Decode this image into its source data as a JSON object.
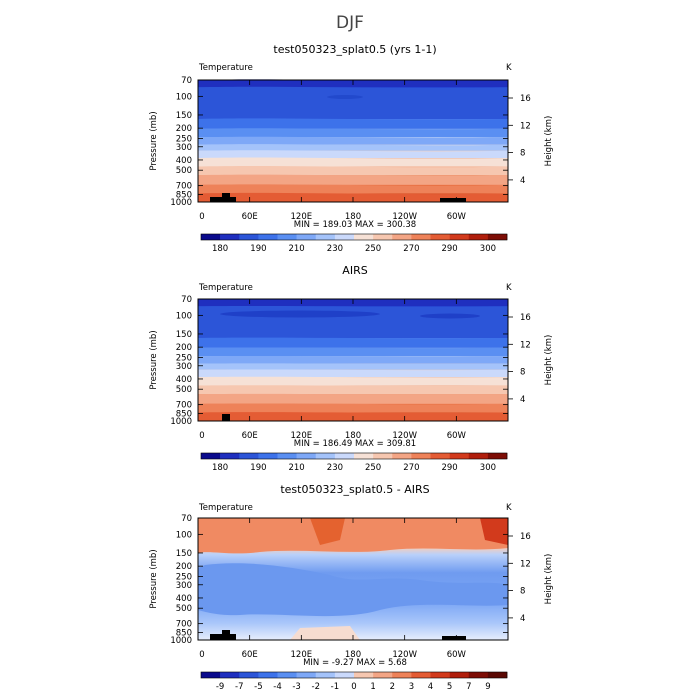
{
  "chart_data": {
    "type": "contour",
    "figure_title": "DJF",
    "panels": [
      {
        "title": "test050323_splat0.5 (yrs 1-1)",
        "left_label": "Temperature",
        "right_label": "K",
        "ylabel": "Pressure (mb)",
        "ylabel_right": "Height (km)",
        "pressure_ticks": [
          "70",
          "100",
          "150",
          "200",
          "250",
          "300",
          "400",
          "500",
          "700",
          "850",
          "1000"
        ],
        "height_ticks": [
          "16",
          "12",
          "8",
          "4"
        ],
        "x_ticks": [
          "0",
          "60E",
          "120E",
          "180",
          "120W",
          "60W"
        ],
        "stats": "MIN = 189.03   MAX = 300.38",
        "colorbar_labels": [
          "180",
          "190",
          "210",
          "230",
          "250",
          "270",
          "290",
          "300"
        ],
        "kind": "abs"
      },
      {
        "title": "AIRS",
        "left_label": "Temperature",
        "right_label": "K",
        "ylabel": "Pressure (mb)",
        "ylabel_right": "Height (km)",
        "pressure_ticks": [
          "70",
          "100",
          "150",
          "200",
          "250",
          "300",
          "400",
          "500",
          "700",
          "850",
          "1000"
        ],
        "height_ticks": [
          "16",
          "12",
          "8",
          "4"
        ],
        "x_ticks": [
          "0",
          "60E",
          "120E",
          "180",
          "120W",
          "60W"
        ],
        "stats": "MIN = 186.49   MAX = 309.81",
        "colorbar_labels": [
          "180",
          "190",
          "210",
          "230",
          "250",
          "270",
          "290",
          "300"
        ],
        "kind": "abs"
      },
      {
        "title": "test050323_splat0.5 - AIRS",
        "left_label": "Temperature",
        "right_label": "K",
        "ylabel": "Pressure (mb)",
        "ylabel_right": "Height (km)",
        "pressure_ticks": [
          "70",
          "100",
          "150",
          "200",
          "250",
          "300",
          "400",
          "500",
          "700",
          "850",
          "1000"
        ],
        "height_ticks": [
          "16",
          "12",
          "8",
          "4"
        ],
        "x_ticks": [
          "0",
          "60E",
          "120E",
          "180",
          "120W",
          "60W"
        ],
        "stats": "MIN =   -9.27   MAX =    5.68",
        "colorbar_labels": [
          "-9",
          "-7",
          "-5",
          "-4",
          "-3",
          "-2",
          "-1",
          "0",
          "1",
          "2",
          "3",
          "4",
          "5",
          "7",
          "9"
        ],
        "kind": "diff"
      }
    ],
    "abs_colors": [
      "#0a0a8c",
      "#1f2fbf",
      "#2c55d8",
      "#3d72ea",
      "#5a8ff2",
      "#7ea8f7",
      "#a4c3fa",
      "#cad9fb",
      "#f6e1d6",
      "#f6c7b0",
      "#f3a585",
      "#ee8259",
      "#e45c34",
      "#d23a1c",
      "#b01e0c",
      "#7d0d05"
    ],
    "diff_colors": [
      "#0a0a8c",
      "#1f2fbf",
      "#2c55d8",
      "#3d72ea",
      "#5a8ff2",
      "#7ea8f7",
      "#a4c3fa",
      "#cad9fb",
      "#f6c7b0",
      "#f3a585",
      "#ee8259",
      "#e45c34",
      "#d23a1c",
      "#b01e0c",
      "#7d0d05",
      "#5a0803"
    ]
  }
}
